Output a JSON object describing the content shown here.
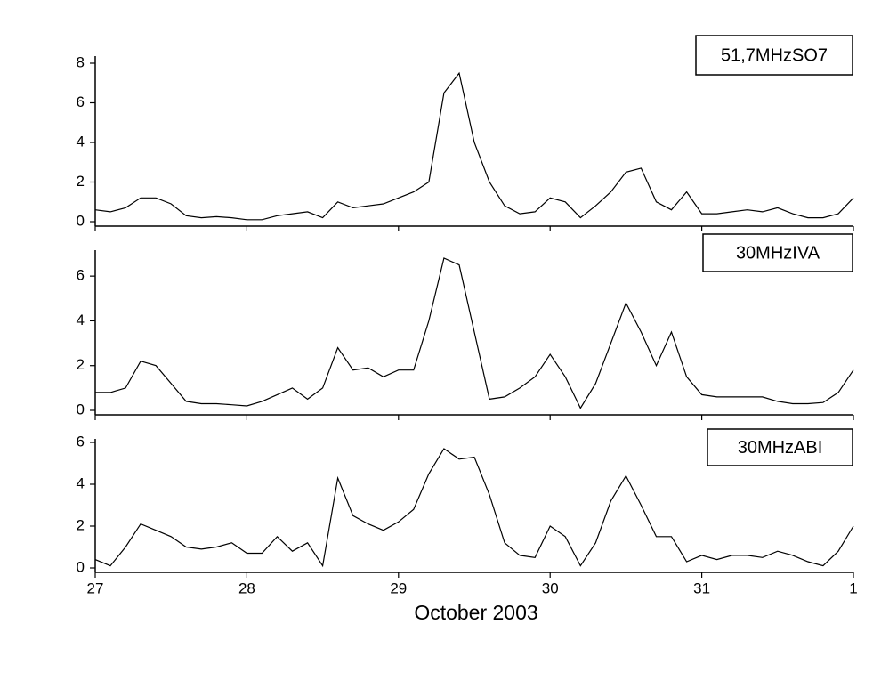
{
  "chart_data": [
    {
      "type": "line",
      "xlim": [
        27,
        32
      ],
      "ylim": [
        0,
        8
      ],
      "yticks": [
        0,
        2,
        4,
        6,
        8
      ],
      "x": [
        27.0,
        27.1,
        27.2,
        27.3,
        27.4,
        27.5,
        27.6,
        27.7,
        27.8,
        27.9,
        28.0,
        28.1,
        28.2,
        28.3,
        28.4,
        28.5,
        28.6,
        28.7,
        28.8,
        28.9,
        29.0,
        29.1,
        29.2,
        29.3,
        29.4,
        29.5,
        29.6,
        29.7,
        29.8,
        29.9,
        30.0,
        30.1,
        30.2,
        30.3,
        30.4,
        30.5,
        30.6,
        30.7,
        30.8,
        30.9,
        31.0,
        31.1,
        31.2,
        31.3,
        31.4,
        31.5,
        31.6,
        31.7,
        31.8,
        31.9,
        32.0
      ],
      "series": [
        {
          "name": "51,7MHzSO7",
          "color": "#000000",
          "values": [
            0.6,
            0.5,
            0.7,
            1.2,
            1.2,
            0.9,
            0.3,
            0.2,
            0.25,
            0.2,
            0.1,
            0.1,
            0.3,
            0.4,
            0.5,
            0.2,
            1.0,
            0.7,
            0.8,
            0.9,
            1.2,
            1.5,
            2.0,
            6.5,
            7.5,
            4.0,
            2.0,
            0.8,
            0.4,
            0.5,
            1.2,
            1.0,
            0.2,
            0.8,
            1.5,
            2.5,
            2.7,
            1.0,
            0.6,
            1.5,
            0.4,
            0.4,
            0.5,
            0.6,
            0.5,
            0.7,
            0.4,
            0.2,
            0.2,
            0.4,
            1.2
          ]
        }
      ]
    },
    {
      "type": "line",
      "xlim": [
        27,
        32
      ],
      "ylim": [
        0,
        7
      ],
      "yticks": [
        0,
        2,
        4,
        6
      ],
      "x": [
        27.0,
        27.1,
        27.2,
        27.3,
        27.4,
        27.5,
        27.6,
        27.7,
        27.8,
        27.9,
        28.0,
        28.1,
        28.2,
        28.3,
        28.4,
        28.5,
        28.6,
        28.7,
        28.8,
        28.9,
        29.0,
        29.1,
        29.2,
        29.3,
        29.4,
        29.5,
        29.6,
        29.7,
        29.8,
        29.9,
        30.0,
        30.1,
        30.2,
        30.3,
        30.4,
        30.5,
        30.6,
        30.7,
        30.8,
        30.9,
        31.0,
        31.1,
        31.2,
        31.3,
        31.4,
        31.5,
        31.6,
        31.7,
        31.8,
        31.9,
        32.0
      ],
      "series": [
        {
          "name": "30MHzIVA",
          "color": "#000000",
          "values": [
            0.8,
            0.8,
            1.0,
            2.2,
            2.0,
            1.2,
            0.4,
            0.3,
            0.3,
            0.25,
            0.2,
            0.4,
            0.7,
            1.0,
            0.5,
            1.0,
            2.8,
            1.8,
            1.9,
            1.5,
            1.8,
            1.8,
            4.0,
            6.8,
            6.5,
            3.5,
            0.5,
            0.6,
            1.0,
            1.5,
            2.5,
            1.5,
            0.1,
            1.2,
            3.0,
            4.8,
            3.5,
            2.0,
            3.5,
            1.5,
            0.7,
            0.6,
            0.6,
            0.6,
            0.6,
            0.4,
            0.3,
            0.3,
            0.35,
            0.8,
            1.8
          ]
        }
      ]
    },
    {
      "type": "line",
      "xlabel": "October 2003",
      "xlim": [
        27,
        32
      ],
      "ylim": [
        0,
        6
      ],
      "yticks": [
        0,
        2,
        4,
        6
      ],
      "xticks": [
        27,
        28,
        29,
        30,
        31,
        {
          "value": 32,
          "label": "1"
        }
      ],
      "x": [
        27.0,
        27.1,
        27.2,
        27.3,
        27.4,
        27.5,
        27.6,
        27.7,
        27.8,
        27.9,
        28.0,
        28.1,
        28.2,
        28.3,
        28.4,
        28.5,
        28.6,
        28.7,
        28.8,
        28.9,
        29.0,
        29.1,
        29.2,
        29.3,
        29.4,
        29.5,
        29.6,
        29.7,
        29.8,
        29.9,
        30.0,
        30.1,
        30.2,
        30.3,
        30.4,
        30.5,
        30.6,
        30.7,
        30.8,
        30.9,
        31.0,
        31.1,
        31.2,
        31.3,
        31.4,
        31.5,
        31.6,
        31.7,
        31.8,
        31.9,
        32.0
      ],
      "series": [
        {
          "name": "30MHzABI",
          "color": "#000000",
          "values": [
            0.4,
            0.1,
            1.0,
            2.1,
            1.8,
            1.5,
            1.0,
            0.9,
            1.0,
            1.2,
            0.7,
            0.7,
            1.5,
            0.8,
            1.2,
            0.1,
            4.3,
            2.5,
            2.1,
            1.8,
            2.2,
            2.8,
            4.5,
            5.7,
            5.2,
            5.3,
            3.5,
            1.2,
            0.6,
            0.5,
            2.0,
            1.5,
            0.1,
            1.2,
            3.2,
            4.4,
            3.0,
            1.5,
            1.5,
            0.3,
            0.6,
            0.4,
            0.6,
            0.6,
            0.5,
            0.8,
            0.6,
            0.3,
            0.1,
            0.8,
            2.0
          ]
        }
      ]
    }
  ]
}
